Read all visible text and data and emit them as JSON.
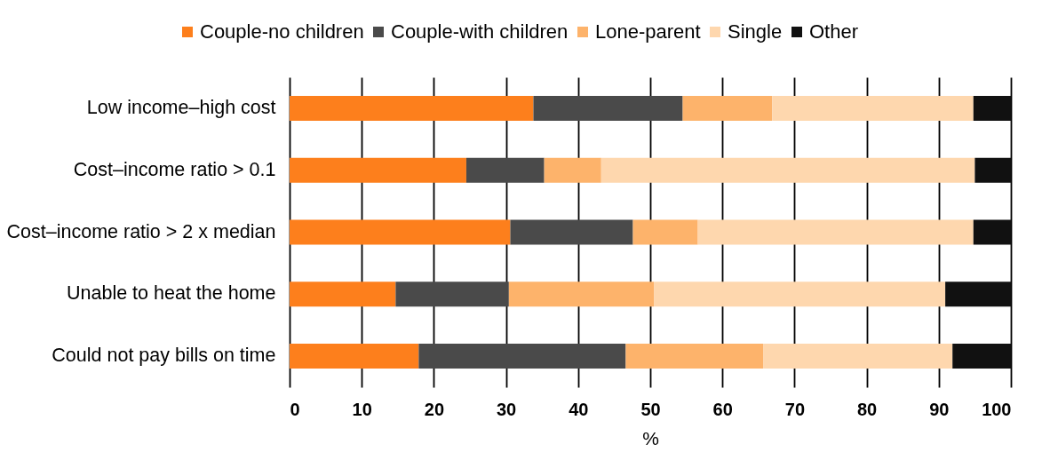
{
  "chart_data": {
    "type": "bar",
    "orientation": "horizontal",
    "stacked": true,
    "categories": [
      "Low income–high cost",
      "Cost–income ratio > 0.1",
      "Cost–income ratio > 2 x median",
      "Unable to heat the home",
      "Could not pay bills on time"
    ],
    "series": [
      {
        "name": "Couple-no children",
        "color": "#fd7f1c",
        "values": [
          33.8,
          24.5,
          30.6,
          14.7,
          17.9
        ]
      },
      {
        "name": "Couple-with children",
        "color": "#4a4a4a",
        "values": [
          20.7,
          10.8,
          17.0,
          15.7,
          28.7
        ]
      },
      {
        "name": "Lone-parent",
        "color": "#fdb36b",
        "values": [
          12.4,
          7.9,
          9.0,
          20.1,
          19.1
        ]
      },
      {
        "name": "Single",
        "color": "#fed7ae",
        "values": [
          27.9,
          51.8,
          38.2,
          40.4,
          26.2
        ]
      },
      {
        "name": "Other",
        "color": "#111111",
        "values": [
          5.2,
          5.0,
          5.2,
          9.1,
          8.1
        ]
      }
    ],
    "xlim": [
      0,
      100
    ],
    "xticks": [
      0,
      10,
      20,
      30,
      40,
      50,
      60,
      70,
      80,
      90,
      100
    ],
    "xlabel": "%",
    "grid": "x",
    "legend": "top"
  }
}
